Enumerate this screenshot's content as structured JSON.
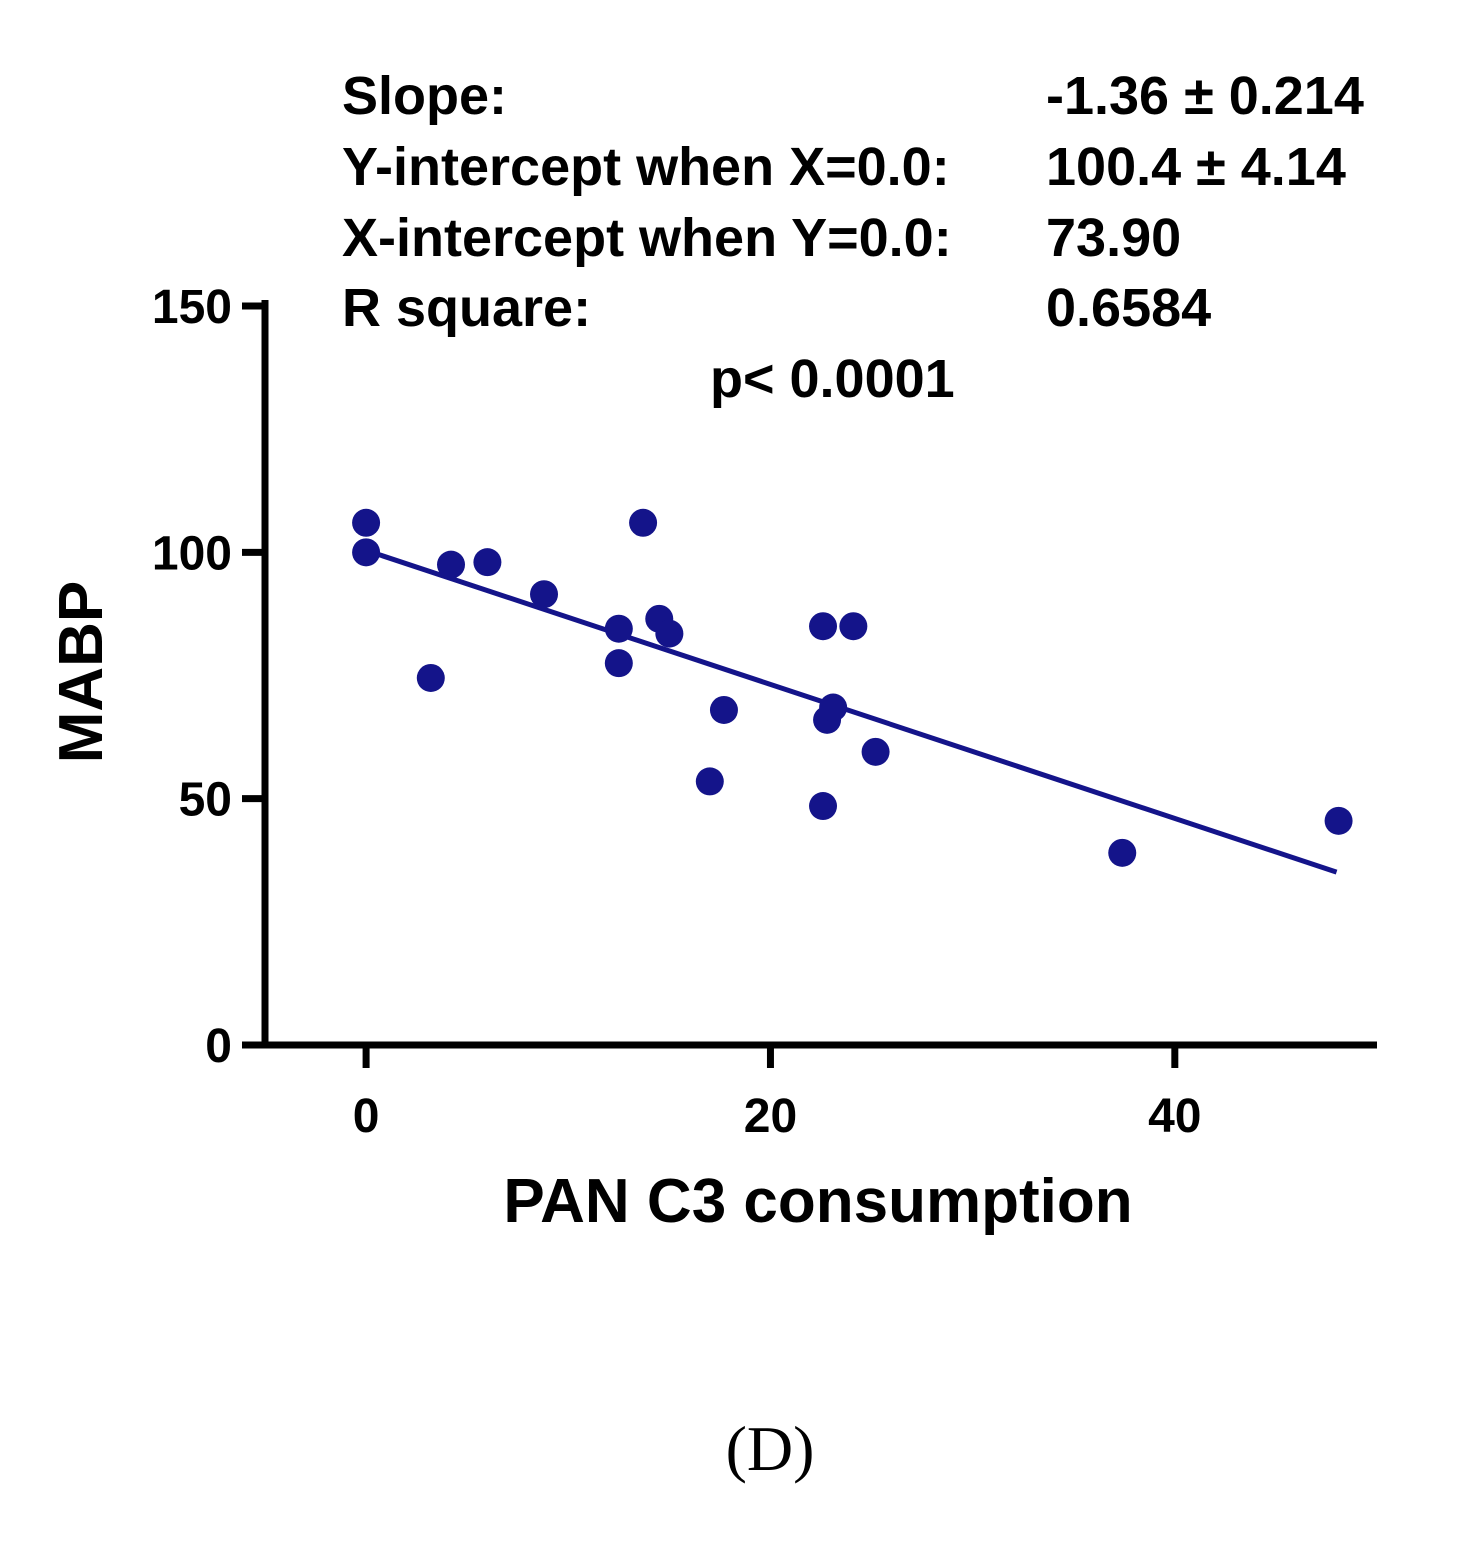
{
  "chart_data": {
    "type": "scatter",
    "xlabel": "PAN C3 consumption",
    "ylabel": "MABP",
    "xlim": [
      -5,
      50
    ],
    "ylim": [
      0,
      150
    ],
    "x_ticks": [
      0,
      20,
      40
    ],
    "y_ticks": [
      0,
      50,
      100,
      150
    ],
    "grid": false,
    "panel_label": "(D)",
    "stats": [
      {
        "label": "Slope:",
        "value": "-1.36 ± 0.214"
      },
      {
        "label": "Y-intercept when X=0.0:",
        "value": "100.4 ± 4.14"
      },
      {
        "label": "X-intercept when Y=0.0:",
        "value": "73.90"
      },
      {
        "label": "R square:",
        "value": "0.6584"
      }
    ],
    "p_value_text": "p< 0.0001",
    "series": [
      {
        "name": "data",
        "color": "#14148a",
        "points": [
          [
            0.0,
            106.0
          ],
          [
            0.0,
            100.0
          ],
          [
            3.2,
            74.5
          ],
          [
            4.2,
            97.5
          ],
          [
            6.0,
            98.0
          ],
          [
            8.8,
            91.5
          ],
          [
            12.5,
            84.5
          ],
          [
            12.5,
            77.5
          ],
          [
            13.7,
            106.0
          ],
          [
            14.5,
            86.5
          ],
          [
            15.0,
            83.5
          ],
          [
            17.0,
            53.5
          ],
          [
            17.7,
            68.0
          ],
          [
            22.6,
            85.0
          ],
          [
            22.6,
            48.5
          ],
          [
            22.8,
            66.0
          ],
          [
            23.1,
            68.5
          ],
          [
            24.1,
            85.0
          ],
          [
            25.2,
            59.5
          ],
          [
            37.4,
            39.0
          ],
          [
            48.1,
            45.5
          ]
        ]
      }
    ],
    "fit_line": {
      "x": [
        0,
        48
      ],
      "y": [
        100.4,
        35.1
      ],
      "color": "#14148a"
    }
  }
}
